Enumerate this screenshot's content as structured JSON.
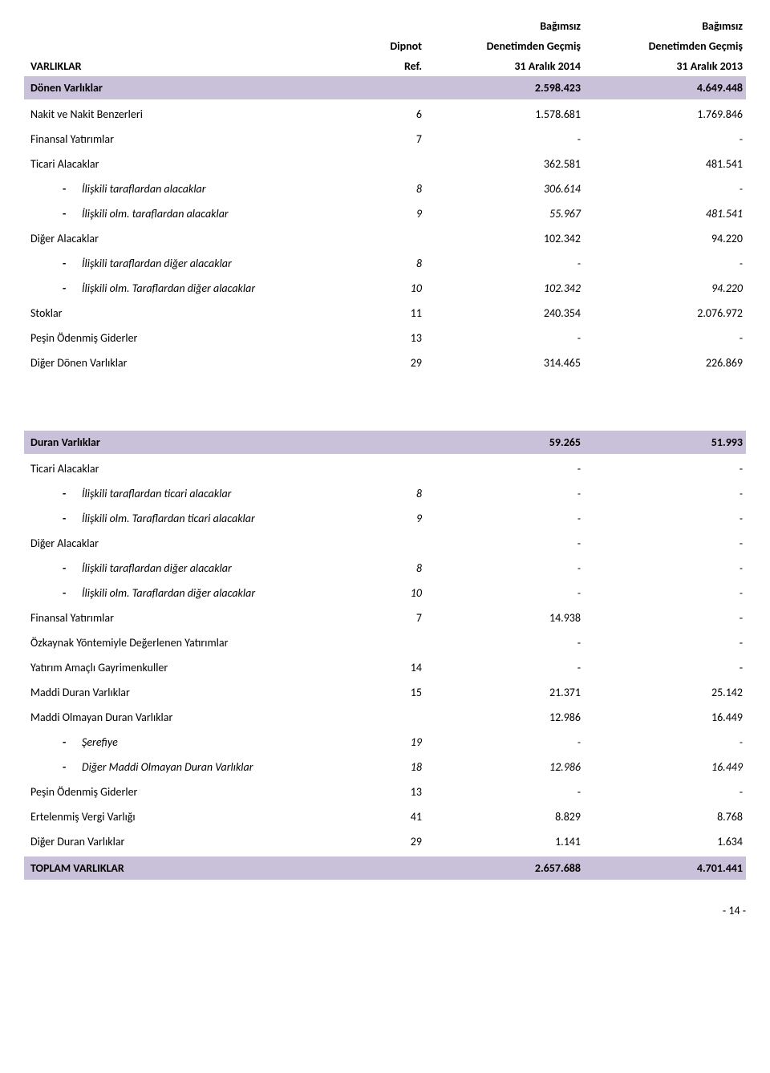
{
  "colors": {
    "band_bg": "#c9c1d9",
    "text": "#000000",
    "page_bg": "#ffffff"
  },
  "fonts": {
    "body_pt": 11,
    "header_weight": 700
  },
  "header": {
    "dipnot": "Dipnot",
    "ref": "Ref.",
    "bagimsiz": "Bağımsız",
    "denetimden": "Denetimden Geçmiş",
    "date1": "31 Aralık 2014",
    "date2": "31 Aralık 2013",
    "varliklar": "VARLIKLAR"
  },
  "s1": {
    "title": "Dönen Varlıklar",
    "v1": "2.598.423",
    "v2": "4.649.448"
  },
  "r": {
    "nakit": {
      "label": "Nakit ve Nakit Benzerleri",
      "ref": "6",
      "v1": "1.578.681",
      "v2": "1.769.846"
    },
    "finyat": {
      "label": "Finansal Yatırımlar",
      "ref": "7",
      "v1": "-",
      "v2": "-"
    },
    "ticari": {
      "label": "Ticari Alacaklar",
      "ref": "",
      "v1": "362.581",
      "v2": "481.541"
    },
    "iliskili_a": {
      "label": "İlişkili taraflardan alacaklar",
      "ref": "8",
      "v1": "306.614",
      "v2": "-"
    },
    "iliskili_olm_a": {
      "label": "İlişkili olm. taraflardan alacaklar",
      "ref": "9",
      "v1": "55.967",
      "v2": "481.541"
    },
    "diger_a": {
      "label": "Diğer Alacaklar",
      "ref": "",
      "v1": "102.342",
      "v2": "94.220"
    },
    "iliskili_d": {
      "label": "İlişkili taraflardan diğer alacaklar",
      "ref": "8",
      "v1": "-",
      "v2": "-"
    },
    "iliskili_olm_d": {
      "label": "İlişkili olm. Taraflardan diğer alacaklar",
      "ref": "10",
      "v1": "102.342",
      "v2": "94.220"
    },
    "stoklar": {
      "label": "Stoklar",
      "ref": "11",
      "v1": "240.354",
      "v2": "2.076.972"
    },
    "pesin": {
      "label": "Peşin Ödenmiş Giderler",
      "ref": "13",
      "v1": "-",
      "v2": "-"
    },
    "diger_don": {
      "label": "Diğer Dönen Varlıklar",
      "ref": "29",
      "v1": "314.465",
      "v2": "226.869"
    }
  },
  "s2": {
    "title": "Duran Varlıklar",
    "v1": "59.265",
    "v2": "51.993"
  },
  "r2": {
    "ticari": {
      "label": "Ticari Alacaklar",
      "ref": "",
      "v1": "-",
      "v2": "-"
    },
    "iliskili_t": {
      "label": "İlişkili taraflardan ticari alacaklar",
      "ref": "8",
      "v1": "-",
      "v2": "-"
    },
    "iliskili_olm_t": {
      "label": "İlişkili olm. Taraflardan ticari alacaklar",
      "ref": "9",
      "v1": "-",
      "v2": "-"
    },
    "diger_a": {
      "label": "Diğer Alacaklar",
      "ref": "",
      "v1": "-",
      "v2": "-"
    },
    "iliskili_d": {
      "label": "İlişkili taraflardan diğer alacaklar",
      "ref": "8",
      "v1": "-",
      "v2": "-"
    },
    "iliskili_olm_d": {
      "label": "İlişkili olm. Taraflardan diğer alacaklar",
      "ref": "10",
      "v1": "-",
      "v2": "-"
    },
    "finyat": {
      "label": "Finansal Yatırımlar",
      "ref": "7",
      "v1": "14.938",
      "v2": "-"
    },
    "ozkaynak": {
      "label": "Özkaynak Yöntemiyle Değerlenen Yatırımlar",
      "ref": "",
      "v1": "-",
      "v2": "-"
    },
    "yatirim_g": {
      "label": "Yatırım Amaçlı Gayrimenkuller",
      "ref": "14",
      "v1": "-",
      "v2": "-"
    },
    "maddi": {
      "label": "Maddi Duran Varlıklar",
      "ref": "15",
      "v1": "21.371",
      "v2": "25.142"
    },
    "maddi_olm": {
      "label": "Maddi Olmayan Duran Varlıklar",
      "ref": "",
      "v1": "12.986",
      "v2": "16.449"
    },
    "serefiye": {
      "label": "Şerefiye",
      "ref": "19",
      "v1": "-",
      "v2": "-"
    },
    "diger_maddi_olm": {
      "label": "Diğer Maddi Olmayan Duran Varlıklar",
      "ref": "18",
      "v1": "12.986",
      "v2": "16.449"
    },
    "pesin": {
      "label": "Peşin Ödenmiş Giderler",
      "ref": "13",
      "v1": "-",
      "v2": "-"
    },
    "ert_vergi": {
      "label": "Ertelenmiş Vergi Varlığı",
      "ref": "41",
      "v1": "8.829",
      "v2": "8.768"
    },
    "diger_dur": {
      "label": "Diğer Duran Varlıklar",
      "ref": "29",
      "v1": "1.141",
      "v2": "1.634"
    }
  },
  "total": {
    "label": "TOPLAM VARLIKLAR",
    "v1": "2.657.688",
    "v2": "4.701.441"
  },
  "page_num": "- 14 -"
}
